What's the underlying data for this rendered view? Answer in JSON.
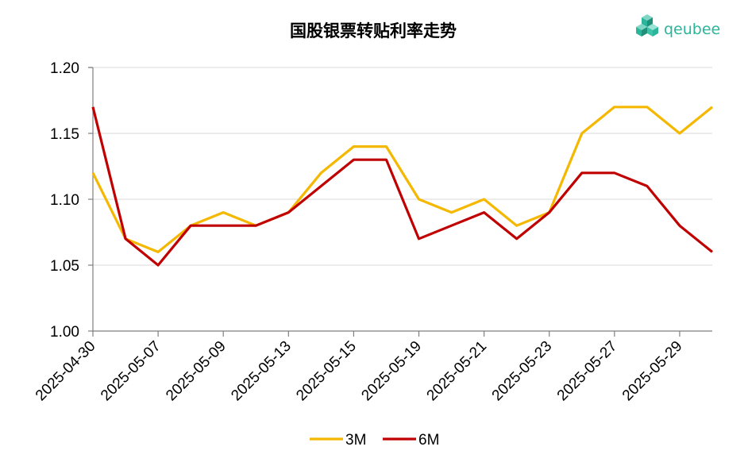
{
  "logo": {
    "text": "qeubee",
    "color": "#2bb59a"
  },
  "chart_data": {
    "type": "line",
    "title": "国股银票转贴利率走势",
    "xlabel": "",
    "ylabel": "",
    "ylim": [
      1.0,
      1.2
    ],
    "yticks": [
      "1.00",
      "1.05",
      "1.10",
      "1.15",
      "1.20"
    ],
    "grid": "horizontal",
    "legend_position": "bottom",
    "x": [
      "2025-04-30",
      "2025-05-06",
      "2025-05-07",
      "2025-05-08",
      "2025-05-09",
      "2025-05-12",
      "2025-05-13",
      "2025-05-14",
      "2025-05-15",
      "2025-05-16",
      "2025-05-19",
      "2025-05-20",
      "2025-05-21",
      "2025-05-22",
      "2025-05-23",
      "2025-05-26",
      "2025-05-27",
      "2025-05-28",
      "2025-05-29",
      "2025-05-30"
    ],
    "x_tick_labels": [
      "2025-04-30",
      "2025-05-07",
      "2025-05-09",
      "2025-05-13",
      "2025-05-15",
      "2025-05-19",
      "2025-05-21",
      "2025-05-23",
      "2025-05-27",
      "2025-05-29"
    ],
    "series": [
      {
        "name": "3M",
        "color": "#f5b800",
        "values": [
          1.12,
          1.07,
          1.06,
          1.08,
          1.09,
          1.08,
          1.09,
          1.12,
          1.14,
          1.14,
          1.1,
          1.09,
          1.1,
          1.08,
          1.09,
          1.15,
          1.17,
          1.17,
          1.15,
          1.17
        ]
      },
      {
        "name": "6M",
        "color": "#c00000",
        "values": [
          1.17,
          1.07,
          1.05,
          1.08,
          1.08,
          1.08,
          1.09,
          1.11,
          1.13,
          1.13,
          1.07,
          1.08,
          1.09,
          1.07,
          1.09,
          1.12,
          1.12,
          1.11,
          1.08,
          1.06
        ]
      }
    ]
  }
}
